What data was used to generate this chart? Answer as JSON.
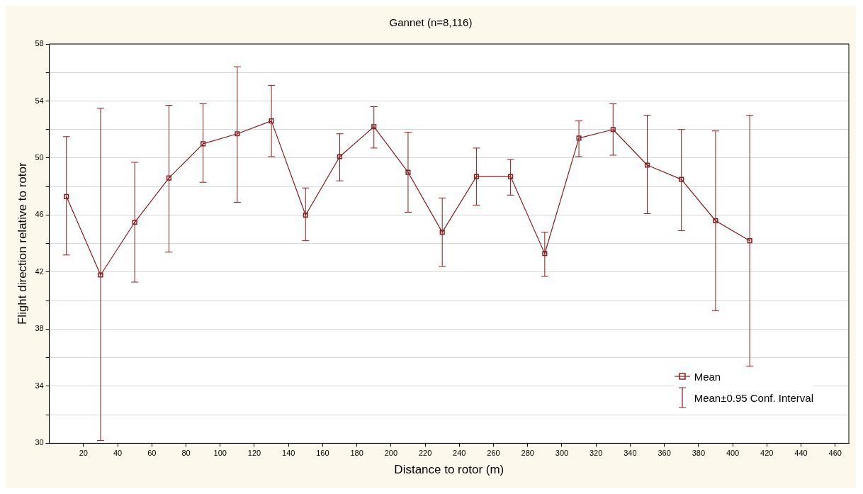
{
  "chart_data": {
    "type": "line",
    "title": "Gannet (n=8,116)",
    "xlabel": "Distance to rotor (m)",
    "ylabel": "Flight direction relative to rotor",
    "x": [
      10,
      30,
      50,
      70,
      90,
      110,
      130,
      150,
      170,
      190,
      210,
      230,
      250,
      270,
      290,
      310,
      330,
      350,
      370,
      390,
      410
    ],
    "series": [
      {
        "name": "Mean",
        "color": "#8b1c1c",
        "values": [
          47.3,
          41.8,
          45.5,
          48.6,
          51.0,
          51.7,
          52.6,
          46.0,
          50.1,
          52.2,
          49.0,
          44.8,
          48.7,
          48.7,
          43.3,
          51.4,
          52.0,
          49.5,
          48.5,
          45.6,
          44.2
        ],
        "errors": [
          [
            43.2,
            51.5
          ],
          [
            30.2,
            53.5
          ],
          [
            41.3,
            49.7
          ],
          [
            43.4,
            53.7
          ],
          [
            48.3,
            53.8
          ],
          [
            46.9,
            56.4
          ],
          [
            50.1,
            55.1
          ],
          [
            44.2,
            47.9
          ],
          [
            48.4,
            51.7
          ],
          [
            50.7,
            53.6
          ],
          [
            46.2,
            51.8
          ],
          [
            42.4,
            47.2
          ],
          [
            46.7,
            50.7
          ],
          [
            47.4,
            49.9
          ],
          [
            41.7,
            44.8
          ],
          [
            50.1,
            52.6
          ],
          [
            50.2,
            53.8
          ],
          [
            46.1,
            53.0
          ],
          [
            44.9,
            52.0
          ],
          [
            39.3,
            51.9
          ],
          [
            35.4,
            53.0
          ]
        ]
      }
    ],
    "annotations": [
      "Mean±0.95 Conf. Interval"
    ],
    "xlim": [
      0,
      468
    ],
    "xticks": [
      20,
      40,
      60,
      80,
      100,
      120,
      140,
      160,
      180,
      200,
      220,
      240,
      260,
      280,
      300,
      320,
      340,
      360,
      380,
      400,
      420,
      440,
      460
    ],
    "ylim": [
      30,
      58
    ],
    "yticks": [
      30,
      {
        "value": 32,
        "label": null
      },
      34,
      {
        "value": 36,
        "label": null
      },
      38,
      {
        "value": 40,
        "label": null
      },
      42,
      {
        "value": 44,
        "label": null
      },
      46,
      {
        "value": 48,
        "label": null
      },
      50,
      {
        "value": 52,
        "label": null
      },
      54,
      {
        "value": 56,
        "label": null
      },
      58
    ],
    "grid": "y",
    "legend": "bottom right",
    "marker": "square",
    "line_style": "solid"
  }
}
